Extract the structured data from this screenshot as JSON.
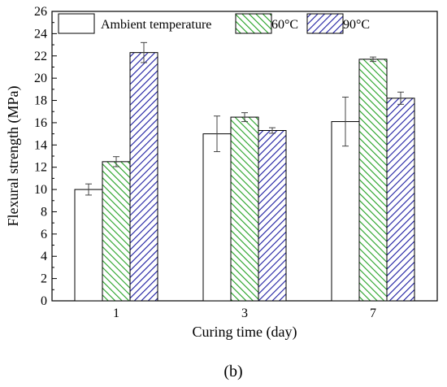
{
  "chart_data": {
    "type": "bar",
    "categories": [
      "1",
      "3",
      "7"
    ],
    "xlabel": "Curing time (day)",
    "ylabel": "Flexural strength (MPa)",
    "ylim": [
      0,
      26
    ],
    "yticks": [
      0,
      2,
      4,
      6,
      8,
      10,
      12,
      14,
      16,
      18,
      20,
      22,
      24,
      26
    ],
    "grid": false,
    "legend_position": "top",
    "error_bars": true,
    "series": [
      {
        "name": "Ambient temperature",
        "values": [
          10.0,
          15.0,
          16.1
        ],
        "errors": [
          0.5,
          1.6,
          2.2
        ],
        "color": "#ffffff",
        "pattern": "none"
      },
      {
        "name": "60°C",
        "values": [
          12.5,
          16.5,
          21.7
        ],
        "errors": [
          0.45,
          0.4,
          0.2
        ],
        "color": "#22a022",
        "pattern": "diagonal"
      },
      {
        "name": "90°C",
        "values": [
          22.3,
          15.3,
          18.2
        ],
        "errors": [
          0.9,
          0.25,
          0.55
        ],
        "color": "#1a1aa0",
        "pattern": "diagonal"
      }
    ]
  },
  "caption": "(b)"
}
